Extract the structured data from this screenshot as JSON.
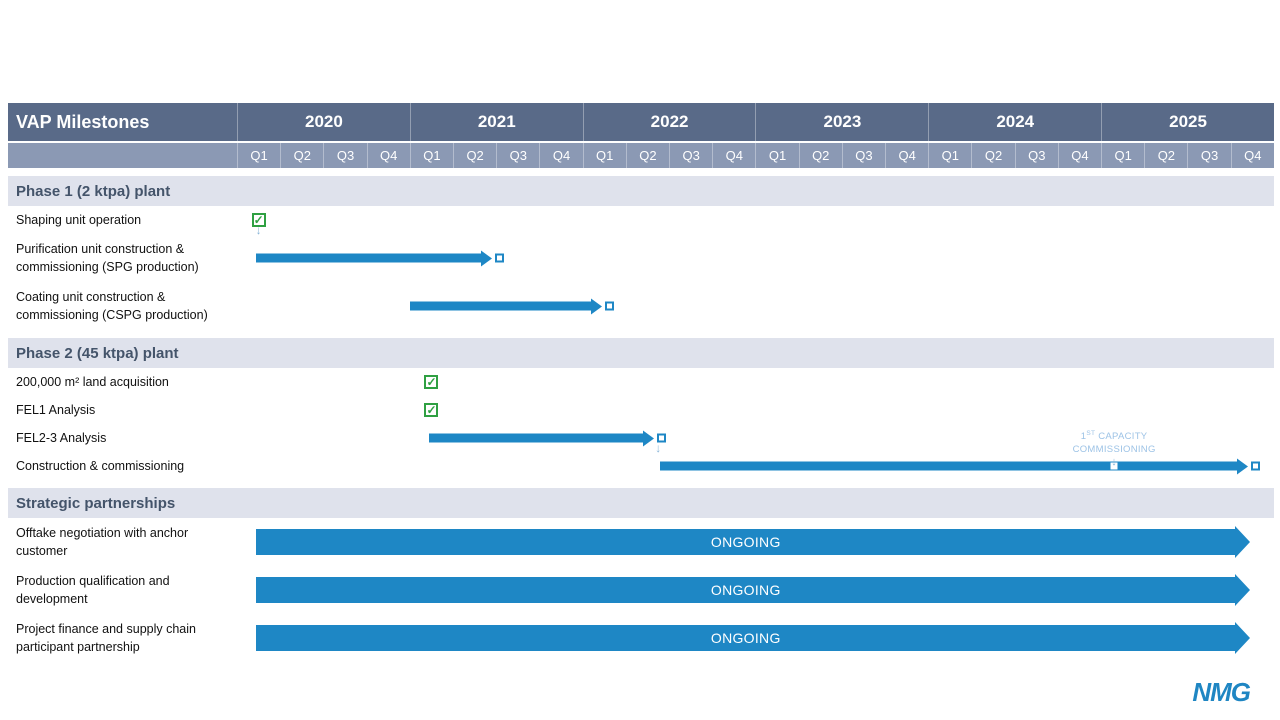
{
  "title": "VAP Milestones",
  "header": {
    "years": [
      "2020",
      "2021",
      "2022",
      "2023",
      "2024",
      "2025"
    ],
    "quarters": [
      "Q1",
      "Q2",
      "Q3",
      "Q4"
    ]
  },
  "icons": {
    "check": "✓",
    "down_arrow": "↓"
  },
  "annotation": {
    "prefix": "1",
    "sup": "ST",
    "line1_rest": " CAPACITY",
    "line2": "COMMISSIONING"
  },
  "logo": {
    "text": "NMG"
  },
  "colors": {
    "header_dark": "#596a88",
    "header_light": "#8b99b4",
    "section_bg": "#dfe2ec",
    "section_text": "#44546a",
    "bar_blue": "#1e87c5",
    "milestone_green": "#2fa042",
    "annotation_blue": "#9dc3e6"
  },
  "chart_data": {
    "type": "gantt",
    "title": "VAP Milestones",
    "time_axis": {
      "unit": "quarter",
      "start": "2020-Q1",
      "end": "2025-Q4",
      "total_quarters": 24,
      "years": [
        2020,
        2021,
        2022,
        2023,
        2024,
        2025
      ]
    },
    "sections": [
      {
        "label": "Phase 1 (2 ktpa) plant",
        "rows": [
          {
            "label": "Shaping unit operation",
            "kind": "milestone-done",
            "quarter": "2020-Q1",
            "pos": 0.5,
            "connector_down": true
          },
          {
            "label": "Purification unit construction & commissioning (SPG production)",
            "kind": "bar",
            "start_quarter": "2020-Q1",
            "end_quarter": "2021-Q2",
            "start": 0.45,
            "end": 5.65,
            "end_marker": "open"
          },
          {
            "label": "Coating unit construction & commissioning (CSPG production)",
            "kind": "bar",
            "start_quarter": "2021-Q1",
            "end_quarter": "2022-Q1",
            "start": 4.0,
            "end": 8.2,
            "end_marker": "open"
          }
        ]
      },
      {
        "label": "Phase 2 (45 ktpa) plant",
        "rows": [
          {
            "label": "200,000 m² land acquisition",
            "kind": "milestone-done",
            "quarter": "2021-Q1",
            "pos": 4.5
          },
          {
            "label": "FEL1 Analysis",
            "kind": "milestone-done",
            "quarter": "2021-Q1",
            "pos": 4.5
          },
          {
            "label": "FEL2-3 Analysis",
            "kind": "bar",
            "start_quarter": "2021-Q1",
            "end_quarter": "2022-Q3",
            "start": 4.45,
            "end": 9.4,
            "end_marker": "open",
            "connector_down": true,
            "connector_pos": 9.75
          },
          {
            "label": "Construction & commissioning",
            "kind": "bar",
            "start_quarter": "2022-Q3",
            "end_quarter": "2025-Q4",
            "start": 9.8,
            "end": 23.15,
            "end_marker": "open",
            "mid_marker": 20.3,
            "mid_marker_label": "1st capacity commissioning"
          }
        ]
      },
      {
        "label": "Strategic partnerships",
        "rows": [
          {
            "label": "Offtake negotiation with anchor customer",
            "kind": "ongoing",
            "start": 0.45,
            "end": 23.1,
            "text": "ONGOING"
          },
          {
            "label": "Production qualification and development",
            "kind": "ongoing",
            "start": 0.45,
            "end": 23.1,
            "text": "ONGOING"
          },
          {
            "label": "Project finance and supply chain participant partnership",
            "kind": "ongoing",
            "start": 0.45,
            "end": 23.1,
            "text": "ONGOING"
          }
        ]
      }
    ]
  }
}
